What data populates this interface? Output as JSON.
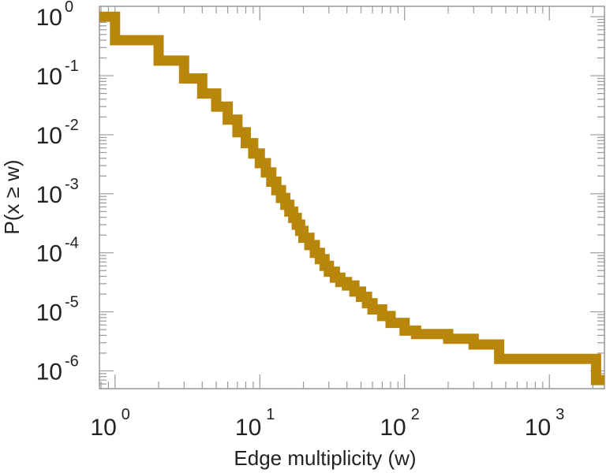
{
  "chart_data": {
    "type": "line",
    "step": true,
    "xlabel": "Edge multiplicity (w)",
    "ylabel": "P(x ≥ w)",
    "xscale": "log",
    "yscale": "log",
    "xlim": [
      0.78,
      2400
    ],
    "ylim": [
      5e-07,
      1.5
    ],
    "grid": false,
    "legend": "none",
    "color": "#B8860B",
    "x_ticks": [
      {
        "value": 1,
        "base": "10",
        "exp": "0"
      },
      {
        "value": 10,
        "base": "10",
        "exp": "1"
      },
      {
        "value": 100,
        "base": "10",
        "exp": "2"
      },
      {
        "value": 1000,
        "base": "10",
        "exp": "3"
      }
    ],
    "y_ticks": [
      {
        "value": 1,
        "base": "10",
        "exp": "0"
      },
      {
        "value": 0.1,
        "base": "10",
        "exp": "-1"
      },
      {
        "value": 0.01,
        "base": "10",
        "exp": "-2"
      },
      {
        "value": 0.001,
        "base": "10",
        "exp": "-3"
      },
      {
        "value": 0.0001,
        "base": "10",
        "exp": "-4"
      },
      {
        "value": 1e-05,
        "base": "10",
        "exp": "-5"
      },
      {
        "value": 1e-06,
        "base": "10",
        "exp": "-6"
      }
    ],
    "series": [
      {
        "x": [
          0.78,
          1,
          2,
          3,
          4,
          5,
          6,
          7,
          8,
          9,
          10,
          11,
          12,
          13,
          14,
          15,
          16,
          17,
          18,
          19,
          20,
          22,
          24,
          26,
          28,
          30,
          33,
          36,
          40,
          45,
          50,
          55,
          60,
          70,
          80,
          100,
          120,
          200,
          300,
          450,
          1800,
          2100,
          2400
        ],
        "y": [
          1.0,
          0.4,
          0.18,
          0.09,
          0.05,
          0.03,
          0.018,
          0.011,
          0.0072,
          0.0048,
          0.0033,
          0.0023,
          0.0016,
          0.00115,
          0.00085,
          0.00065,
          0.0005,
          0.00039,
          0.0003,
          0.000235,
          0.00018,
          0.000135,
          0.0001,
          7.8e-05,
          6e-05,
          4.8e-05,
          3.8e-05,
          3.2e-05,
          2.8e-05,
          2.2e-05,
          1.8e-05,
          1.4e-05,
          1.1e-05,
          8.5e-06,
          6.5e-06,
          4.8e-06,
          4.2e-06,
          3.5e-06,
          2.8e-06,
          1.6e-06,
          1.6e-06,
          7e-07,
          7e-07
        ]
      }
    ]
  }
}
